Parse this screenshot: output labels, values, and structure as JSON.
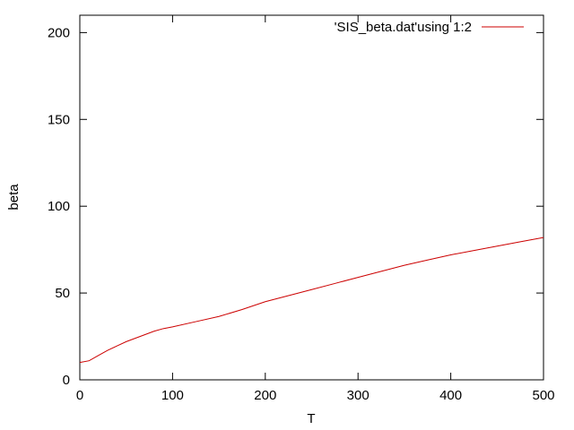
{
  "chart_data": {
    "type": "line",
    "title": "",
    "xlabel": "T",
    "ylabel": "beta",
    "xlim": [
      0,
      500
    ],
    "ylim": [
      0,
      210
    ],
    "xticks": [
      0,
      100,
      200,
      300,
      400,
      500
    ],
    "yticks": [
      0,
      50,
      100,
      150,
      200
    ],
    "grid": false,
    "legend_position": "top-right",
    "series": [
      {
        "name": "'SIS_beta.dat'using 1:2",
        "color": "#cc0000",
        "x": [
          0,
          10,
          20,
          30,
          40,
          50,
          60,
          70,
          80,
          90,
          100,
          125,
          150,
          175,
          200,
          225,
          250,
          275,
          300,
          325,
          350,
          375,
          400,
          425,
          450,
          475,
          500
        ],
        "y": [
          10,
          11,
          14,
          17,
          19.5,
          22,
          24,
          26,
          28,
          29.5,
          30.5,
          33.5,
          36.5,
          40.5,
          45,
          48.5,
          52,
          55.5,
          59,
          62.5,
          66,
          69,
          72,
          74.5,
          77,
          79.5,
          82
        ]
      }
    ]
  }
}
